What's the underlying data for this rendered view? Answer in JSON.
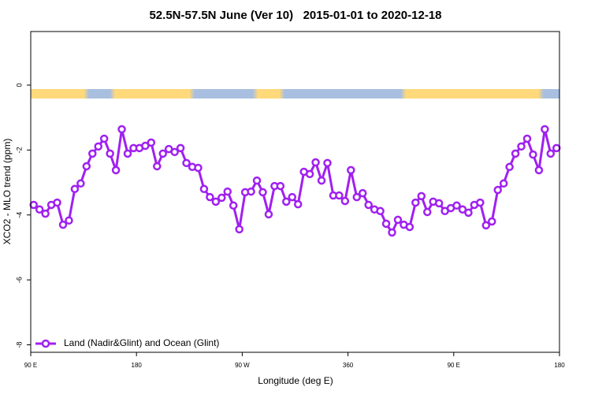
{
  "chart_data": {
    "type": "line",
    "title": "52.5N-57.5N June (Ver 10)   2015-01-01 to 2020-12-18",
    "x_label": "Longitude (deg E)",
    "y_label": "XCO2 - MLO trend (ppm)",
    "x": [
      92.5,
      97.5,
      102.5,
      107.5,
      112.5,
      117.5,
      122.5,
      127.5,
      132.5,
      137.5,
      142.5,
      147.5,
      152.5,
      157.5,
      162.5,
      167.5,
      172.5,
      177.5,
      182.5,
      187.5,
      192.5,
      197.5,
      202.5,
      207.5,
      212.5,
      217.5,
      222.5,
      227.5,
      232.5,
      237.5,
      242.5,
      247.5,
      252.5,
      257.5,
      262.5,
      267.5,
      272.5,
      277.5,
      282.5,
      287.5,
      292.5,
      297.5,
      302.5,
      307.5,
      312.5,
      317.5,
      322.5,
      327.5,
      332.5,
      337.5,
      342.5,
      347.5,
      352.5,
      357.5,
      362.5,
      367.5,
      372.5,
      377.5,
      382.5,
      387.5,
      392.5,
      397.5,
      402.5,
      407.5,
      412.5,
      417.5,
      422.5,
      427.5,
      432.5,
      437.5,
      442.5,
      447.5,
      452.5,
      457.5,
      462.5,
      467.5,
      472.5,
      477.5,
      482.5,
      487.5,
      492.5,
      497.5,
      502.5,
      507.5,
      512.5,
      517.5,
      522.5,
      527.5,
      532.5,
      537.5
    ],
    "series": [
      {
        "name": "Land (Nadir&Glint) and Ocean (Glint)",
        "color": "#a020f0",
        "values": [
          -3.69,
          -3.83,
          -3.96,
          -3.69,
          -3.62,
          -4.3,
          -4.17,
          -3.2,
          -3.03,
          -2.5,
          -2.11,
          -1.89,
          -1.65,
          -2.11,
          -2.62,
          -1.36,
          -2.11,
          -1.94,
          -1.94,
          -1.87,
          -1.77,
          -2.5,
          -2.11,
          -1.97,
          -2.06,
          -1.94,
          -2.4,
          -2.52,
          -2.55,
          -3.2,
          -3.45,
          -3.59,
          -3.47,
          -3.28,
          -3.71,
          -4.44,
          -3.3,
          -3.28,
          -2.94,
          -3.3,
          -3.98,
          -3.11,
          -3.11,
          -3.59,
          -3.45,
          -3.67,
          -2.67,
          -2.74,
          -2.38,
          -2.94,
          -2.4,
          -3.4,
          -3.4,
          -3.57,
          -2.62,
          -3.45,
          -3.33,
          -3.69,
          -3.83,
          -3.88,
          -4.27,
          -4.54,
          -4.15,
          -4.3,
          -4.37,
          -3.62,
          -3.42,
          -3.91,
          -3.59,
          -3.64,
          -3.88,
          -3.79,
          -3.71,
          -3.83,
          -3.93,
          -3.69,
          -3.62,
          -4.32,
          -4.2,
          -3.23,
          -3.03,
          -2.52,
          -2.11,
          -1.89,
          -1.65,
          -2.14,
          -2.62,
          -1.36,
          -2.11,
          -1.94
        ]
      }
    ],
    "xlim": [
      90,
      540
    ],
    "xticks": [
      {
        "value": 90,
        "label": "90 E"
      },
      180,
      {
        "value": 270,
        "label": "90 W"
      },
      360,
      {
        "value": 450,
        "label": "90 E"
      },
      {
        "value": 540,
        "label": "180"
      }
    ],
    "ylim": [
      -8.23,
      1.65
    ],
    "yticks": [
      0,
      -2,
      -4,
      -6,
      -8
    ],
    "legend": "bottom-left"
  }
}
